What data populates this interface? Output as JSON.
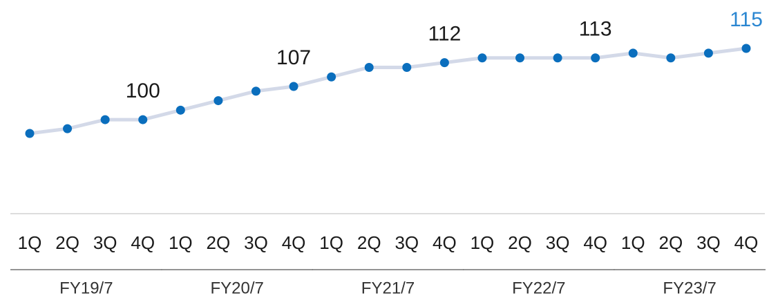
{
  "chart_data": {
    "type": "line",
    "categories": [
      "1Q",
      "2Q",
      "3Q",
      "4Q",
      "1Q",
      "2Q",
      "3Q",
      "4Q",
      "1Q",
      "2Q",
      "3Q",
      "4Q",
      "1Q",
      "2Q",
      "3Q",
      "4Q",
      "1Q",
      "2Q",
      "3Q",
      "4Q"
    ],
    "groups": [
      "FY19/7",
      "FY20/7",
      "FY21/7",
      "FY22/7",
      "FY23/7"
    ],
    "values": [
      97.1,
      98.1,
      100,
      100,
      102,
      104,
      106,
      107,
      109,
      111,
      111,
      112,
      113,
      113,
      113,
      113,
      114,
      113,
      114,
      115
    ],
    "labeled_points": [
      3,
      7,
      11,
      15,
      19
    ],
    "line_color": "#d3d9e8",
    "marker_color": "#0a6ebd",
    "highlight_color": "#2a86d1"
  }
}
